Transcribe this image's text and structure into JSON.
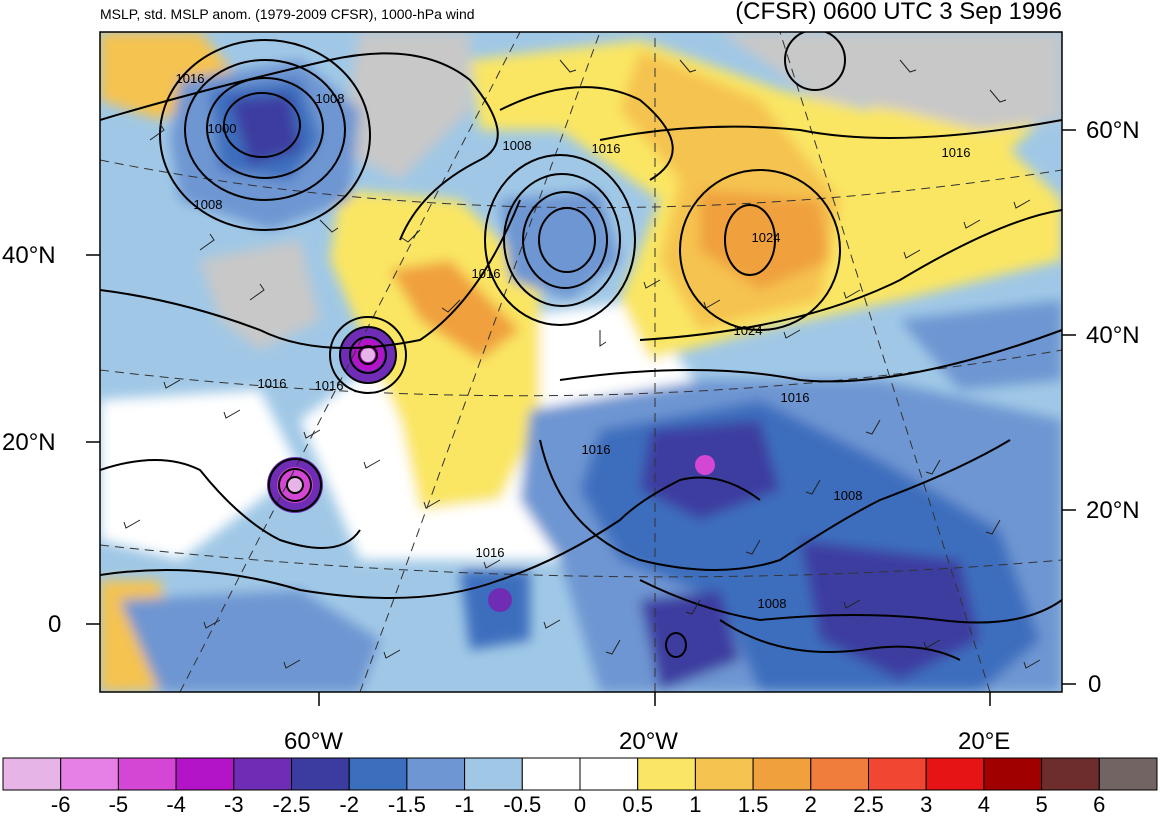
{
  "header": {
    "left_title": "MSLP, std. MSLP anom. (1979-2009 CFSR), 1000-hPa wind",
    "right_title": "(CFSR) 0600 UTC 3 Sep 1996"
  },
  "axes": {
    "left_lat_labels": [
      "40°N",
      "20°N",
      "0"
    ],
    "right_lat_labels": [
      "60°N",
      "40°N",
      "20°N",
      "0"
    ],
    "bottom_lon_labels": [
      "60°W",
      "20°W",
      "20°E"
    ]
  },
  "isobars": {
    "labels": [
      "1016",
      "1008",
      "1000",
      "1008",
      "1008",
      "1016",
      "1016",
      "1024",
      "1024",
      "1016",
      "1016",
      "1016",
      "1016",
      "1008",
      "1016",
      "1016",
      "1008"
    ]
  },
  "colorbar": {
    "labels": [
      "-6",
      "-5",
      "-4",
      "-3",
      "-2.5",
      "-2",
      "-1.5",
      "-1",
      "-0.5",
      "0",
      "0.5",
      "1",
      "1.5",
      "2",
      "2.5",
      "3",
      "4",
      "5",
      "6"
    ],
    "colors": [
      "#e6b4e6",
      "#e680e6",
      "#d446d4",
      "#b414c8",
      "#6e2db4",
      "#3c3ca0",
      "#3c6ebe",
      "#6e96d2",
      "#a0c8e6",
      "#ffffff",
      "#ffffff",
      "#fae664",
      "#f5c350",
      "#f0a03c",
      "#f07d3c",
      "#f04632",
      "#e61414",
      "#a00000",
      "#6e2d2d",
      "#736464"
    ]
  }
}
